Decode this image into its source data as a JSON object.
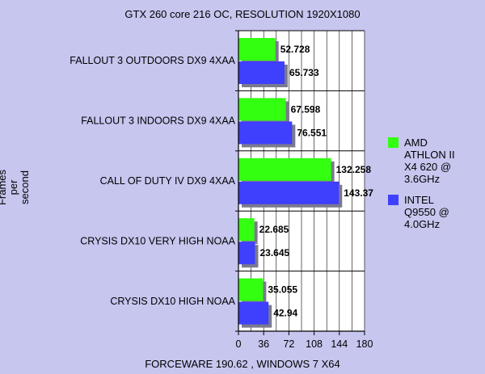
{
  "chart_data": {
    "type": "bar",
    "orientation": "horizontal",
    "title": "GTX 260 core 216 OC, RESOLUTION 1920X1080",
    "xlabel": "FORCEWARE 190.62 , WINDOWS 7 X64",
    "ylabel": [
      "Frames",
      "per",
      "second"
    ],
    "categories": [
      "FALLOUT 3 OUTDOORS DX9 4XAA",
      "FALLOUT 3 INDOORS DX9 4XAA",
      "CALL OF DUTY IV DX9 4XAA",
      "CRYSIS DX10 VERY HIGH NOAA",
      "CRYSIS DX10 HIGH NOAA"
    ],
    "series": [
      {
        "name": [
          "AMD",
          "ATHLON II",
          "X4 620 @",
          "3.6GHz"
        ],
        "color": "#33ff11",
        "values": [
          52.728,
          67.598,
          132.258,
          22.685,
          35.055
        ]
      },
      {
        "name": [
          "INTEL",
          "Q9550 @",
          "4.0GHz"
        ],
        "color": "#3f3ffe",
        "values": [
          65.733,
          76.551,
          143.37,
          23.645,
          42.94
        ]
      }
    ],
    "xlim": [
      0,
      180
    ],
    "xticks": [
      0,
      36,
      72,
      108,
      144,
      180
    ],
    "grid": true,
    "legend_position": "right"
  }
}
